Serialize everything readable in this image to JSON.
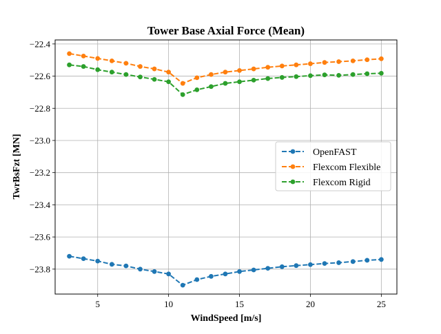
{
  "chart_data": {
    "type": "line",
    "title": "Tower Base Axial Force (Mean)",
    "xlabel": "WindSpeed [m/s]",
    "ylabel": "TwrBsFzt [MN]",
    "xlim": [
      2.0,
      26.1
    ],
    "ylim": [
      -23.955,
      -22.375
    ],
    "xticks": [
      5,
      10,
      15,
      20,
      25
    ],
    "xtick_labels": [
      "5",
      "10",
      "15",
      "20",
      "25"
    ],
    "yticks": [
      -23.8,
      -23.6,
      -23.4,
      -23.2,
      -23.0,
      -22.8,
      -22.6,
      -22.4
    ],
    "ytick_labels": [
      "−23.8",
      "−23.6",
      "−23.4",
      "−23.2",
      "−23.0",
      "−22.8",
      "−22.6",
      "−22.4"
    ],
    "grid": true,
    "legend_position": "center-right",
    "x": [
      3,
      4,
      5,
      6,
      7,
      8,
      9,
      10,
      11,
      12,
      13,
      14,
      15,
      16,
      17,
      18,
      19,
      20,
      21,
      22,
      23,
      24,
      25
    ],
    "series": [
      {
        "name": "OpenFAST",
        "color": "#1f77b4",
        "values": [
          -23.72,
          -23.735,
          -23.75,
          -23.77,
          -23.78,
          -23.8,
          -23.815,
          -23.83,
          -23.9,
          -23.865,
          -23.845,
          -23.83,
          -23.815,
          -23.805,
          -23.795,
          -23.785,
          -23.778,
          -23.772,
          -23.765,
          -23.76,
          -23.753,
          -23.745,
          -23.74
        ]
      },
      {
        "name": "Flexcom Flexible",
        "color": "#ff7f0e",
        "values": [
          -22.46,
          -22.475,
          -22.49,
          -22.505,
          -22.52,
          -22.54,
          -22.555,
          -22.575,
          -22.645,
          -22.61,
          -22.59,
          -22.575,
          -22.565,
          -22.555,
          -22.545,
          -22.537,
          -22.53,
          -22.523,
          -22.515,
          -22.51,
          -22.505,
          -22.498,
          -22.492
        ]
      },
      {
        "name": "Flexcom Rigid",
        "color": "#2ca02c",
        "values": [
          -22.53,
          -22.54,
          -22.56,
          -22.575,
          -22.59,
          -22.605,
          -22.62,
          -22.635,
          -22.715,
          -22.685,
          -22.665,
          -22.645,
          -22.635,
          -22.625,
          -22.615,
          -22.608,
          -22.603,
          -22.597,
          -22.592,
          -22.595,
          -22.59,
          -22.585,
          -22.582
        ]
      }
    ]
  }
}
